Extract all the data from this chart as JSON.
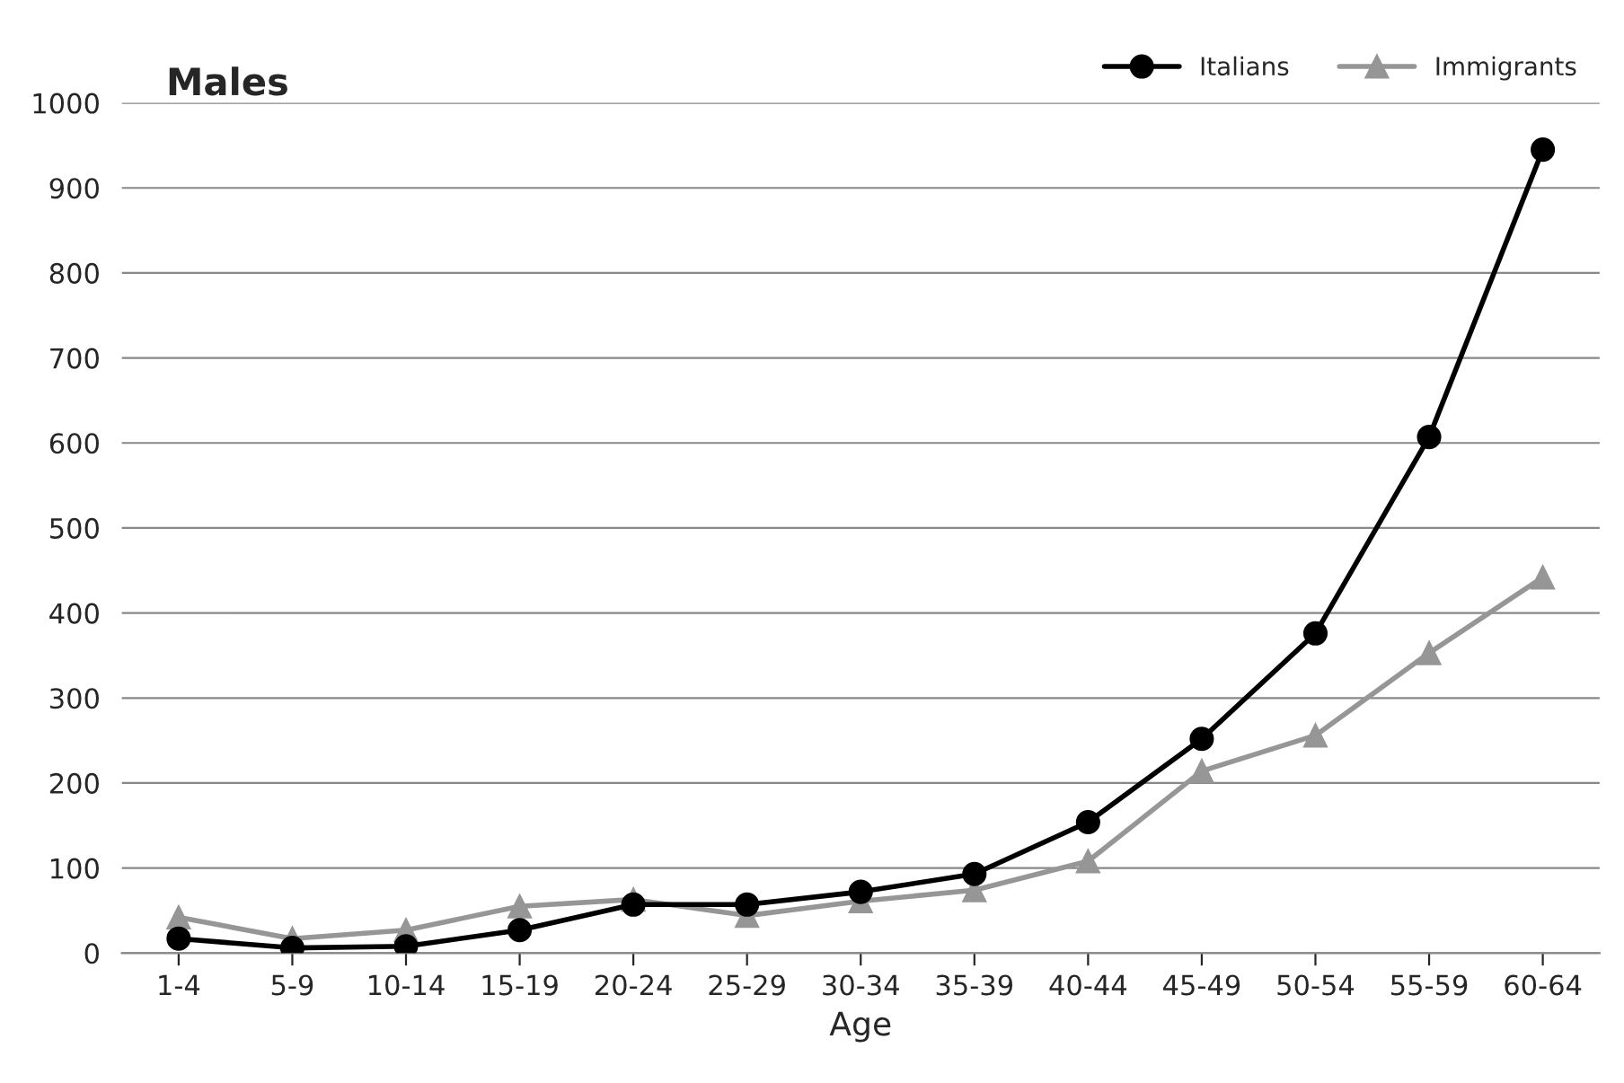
{
  "chart_data": {
    "type": "line",
    "title": "Males",
    "xlabel": "Age",
    "categories": [
      "1-4",
      "5-9",
      "10-14",
      "15-19",
      "20-24",
      "25-29",
      "30-34",
      "35-39",
      "40-44",
      "45-49",
      "50-54",
      "55-59",
      "60-64"
    ],
    "series": [
      {
        "name": "Italians",
        "color": "#000000",
        "marker": "circle",
        "values": [
          17,
          6,
          8,
          27,
          57,
          57,
          72,
          93,
          154,
          252,
          376,
          607,
          945
        ]
      },
      {
        "name": "Immigrants",
        "color": "#969696",
        "marker": "triangle",
        "values": [
          42,
          17,
          27,
          55,
          63,
          44,
          61,
          74,
          108,
          214,
          256,
          353,
          442
        ]
      }
    ],
    "ylim": [
      0,
      1000
    ],
    "yticks": [
      0,
      100,
      200,
      300,
      400,
      500,
      600,
      700,
      800,
      900,
      1000
    ],
    "grid": "y",
    "legend": "top right",
    "line_style": "solid"
  }
}
